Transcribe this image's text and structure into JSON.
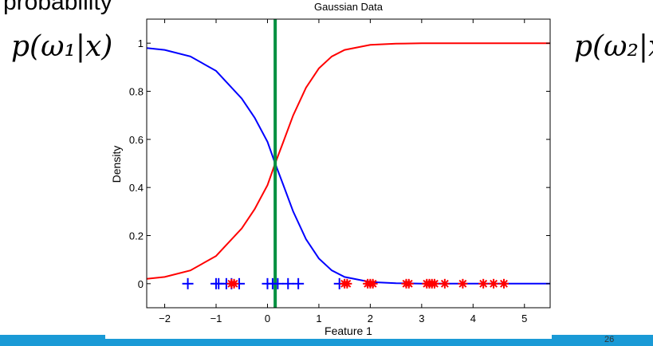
{
  "slide": {
    "title": "probability",
    "eq_left": "p(ω₁|x)",
    "eq_right": "p(ω₂|x",
    "page_number": "26"
  },
  "colors": {
    "class1": "#0000ff",
    "class2": "#ff0000",
    "boundary": "#009040",
    "footer": "#1a9ad6"
  },
  "chart_data": {
    "type": "line",
    "title": "Gaussian Data",
    "xlabel": "Feature 1",
    "ylabel": "Density",
    "xlim": [
      -2.35,
      5.5
    ],
    "ylim": [
      -0.1,
      1.1
    ],
    "x_ticks": [
      -2,
      -1,
      0,
      1,
      2,
      3,
      4,
      5
    ],
    "x_tick_labels": [
      "−2",
      "−1",
      "0",
      "1",
      "2",
      "3",
      "4",
      "5"
    ],
    "y_ticks": [
      0,
      0.2,
      0.4,
      0.6,
      0.8,
      1
    ],
    "y_tick_labels": [
      "0",
      "0.2",
      "0.4",
      "0.6",
      "0.8",
      "1"
    ],
    "decision_boundary_x": 0.15,
    "series": [
      {
        "color": "#0000ff",
        "x": [
          -2.35,
          -2.0,
          -1.5,
          -1.0,
          -0.5,
          -0.25,
          0.0,
          0.15,
          0.3,
          0.5,
          0.75,
          1.0,
          1.25,
          1.5,
          2.0,
          2.5,
          3.0,
          4.0,
          5.5
        ],
        "y": [
          0.98,
          0.972,
          0.945,
          0.885,
          0.77,
          0.69,
          0.59,
          0.5,
          0.415,
          0.3,
          0.185,
          0.105,
          0.055,
          0.028,
          0.007,
          0.002,
          0.0005,
          0.0,
          0.0
        ]
      },
      {
        "color": "#ff0000",
        "x": [
          -2.35,
          -2.0,
          -1.5,
          -1.0,
          -0.5,
          -0.25,
          0.0,
          0.15,
          0.3,
          0.5,
          0.75,
          1.0,
          1.25,
          1.5,
          2.0,
          2.5,
          3.0,
          4.0,
          5.5
        ],
        "y": [
          0.02,
          0.028,
          0.055,
          0.115,
          0.23,
          0.31,
          0.41,
          0.5,
          0.585,
          0.7,
          0.815,
          0.895,
          0.945,
          0.972,
          0.993,
          0.998,
          0.9995,
          1.0,
          1.0
        ]
      }
    ],
    "points": [
      {
        "marker": "plus",
        "color": "#0000ff",
        "x": [
          -1.55,
          -1.0,
          -0.95,
          -0.8,
          -0.7,
          -0.55,
          0.0,
          0.1,
          0.2,
          0.4,
          0.6,
          1.4
        ]
      },
      {
        "marker": "star",
        "color": "#ff0000",
        "x": [
          -0.7,
          -0.65,
          1.5,
          1.55,
          1.95,
          2.0,
          2.05,
          2.7,
          2.75,
          3.1,
          3.15,
          3.2,
          3.25,
          3.45,
          3.8,
          4.2,
          4.4,
          4.6
        ]
      }
    ]
  }
}
